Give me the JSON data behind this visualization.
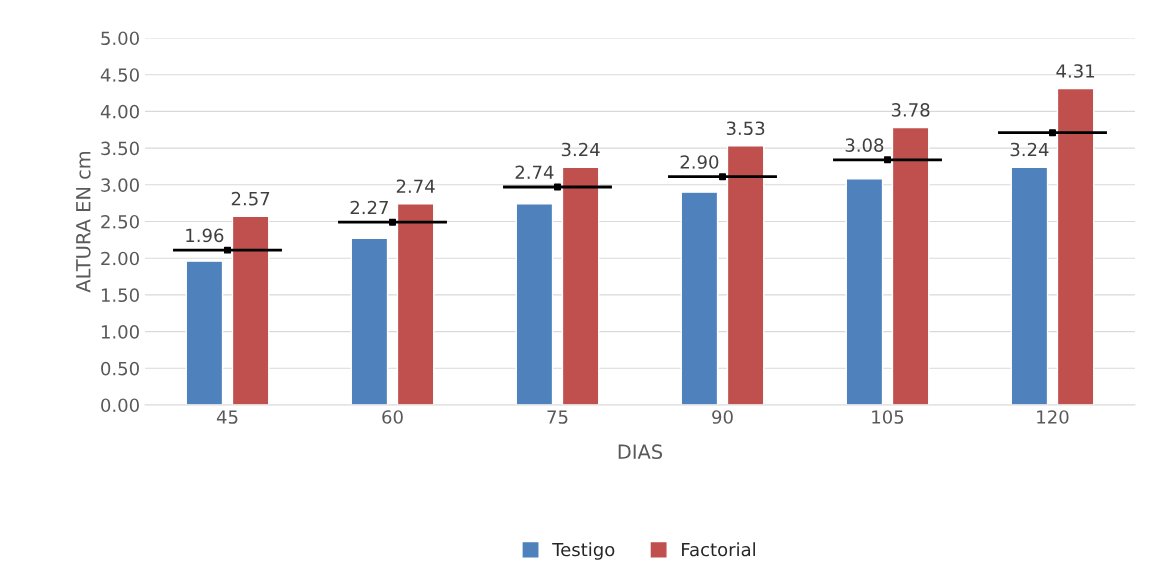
{
  "chart_data": {
    "type": "bar",
    "xlabel": "DIAS",
    "ylabel": "ALTURA EN cm",
    "categories": [
      "45",
      "60",
      "75",
      "90",
      "105",
      "120"
    ],
    "series": [
      {
        "name": "Testigo",
        "color": "#4f81bd",
        "values": [
          1.96,
          2.27,
          2.74,
          2.9,
          3.08,
          3.24
        ],
        "value_labels": [
          "1.96",
          "2.27",
          "2.74",
          "2.90",
          "3.08",
          "3.24"
        ]
      },
      {
        "name": "Factorial",
        "color": "#c0504d",
        "values": [
          2.57,
          2.74,
          3.24,
          3.53,
          3.78,
          4.31
        ],
        "value_labels": [
          "2.57",
          "2.74",
          "3.24",
          "3.53",
          "3.78",
          "4.31"
        ]
      },
      {
        "type": "scatter",
        "color": "#000000",
        "marker": "square",
        "values": [
          2.11,
          2.49,
          2.97,
          3.11,
          3.34,
          3.71
        ]
      }
    ],
    "ylim": [
      0,
      5
    ],
    "yticks": [
      {
        "value": 0,
        "label": "0.00"
      },
      {
        "value": 0.5,
        "label": "0.50"
      },
      {
        "value": 1,
        "label": "1.00"
      },
      {
        "value": 1.5,
        "label": "1.50"
      },
      {
        "value": 2,
        "label": "2.00"
      },
      {
        "value": 2.5,
        "label": "2.50"
      },
      {
        "value": 3,
        "label": "3.00"
      },
      {
        "value": 3.5,
        "label": "3.50"
      },
      {
        "value": 4,
        "label": "4.00"
      },
      {
        "value": 4.5,
        "label": "4.50"
      },
      {
        "value": 5,
        "label": "5.00"
      }
    ],
    "grid": "y",
    "legend": "bottom"
  }
}
